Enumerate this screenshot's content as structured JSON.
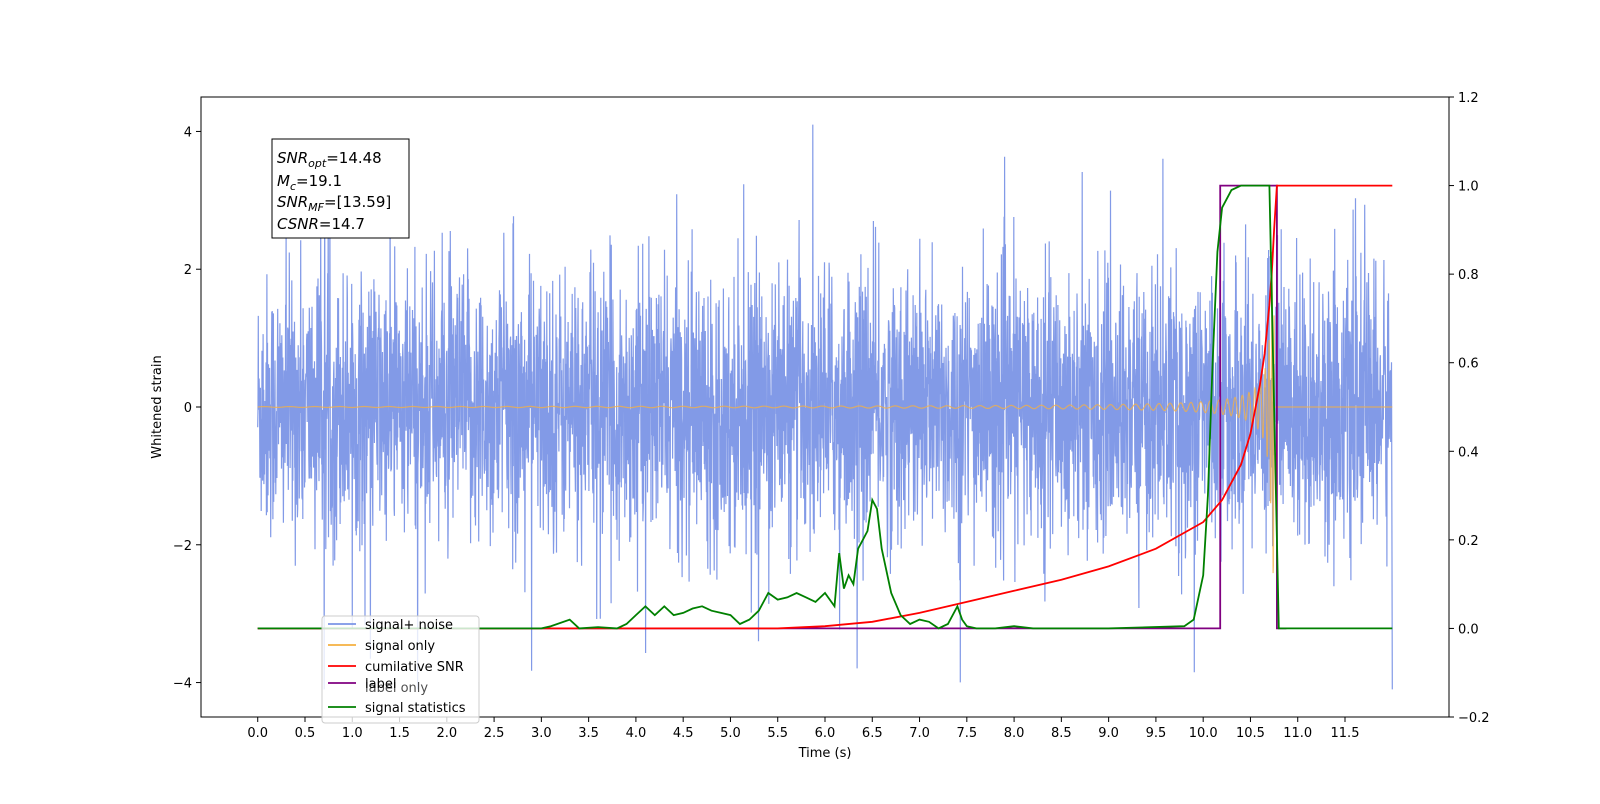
{
  "chart_data": {
    "type": "line",
    "xlabel": "Time (s)",
    "ylabel": "Whitened strain",
    "ylabel_right": "",
    "xlim": [
      -0.6,
      12.6
    ],
    "ylim": [
      -4.5,
      4.5
    ],
    "ylim_right": [
      -0.2,
      1.2
    ],
    "x_ticks": [
      "0.0",
      "0.5",
      "1.0",
      "1.5",
      "2.0",
      "2.5",
      "3.0",
      "3.5",
      "4.0",
      "4.5",
      "5.0",
      "5.5",
      "6.0",
      "6.5",
      "7.0",
      "7.5",
      "8.0",
      "8.5",
      "9.0",
      "9.5",
      "10.0",
      "10.5",
      "11.0",
      "11.5"
    ],
    "y_ticks": [
      -4,
      -2,
      0,
      2,
      4
    ],
    "y_ticks_right": [
      "−0.2",
      "0.0",
      "0.2",
      "0.4",
      "0.6",
      "0.8",
      "1.0",
      "1.2"
    ],
    "y_tick_labels": [
      "−4",
      "−2",
      "0",
      "2",
      "4"
    ],
    "grid": false,
    "legend_placement": "lower-left",
    "annotation": {
      "snr_opt": {
        "name": "SNR",
        "sub": "opt",
        "value": "=14.48"
      },
      "mc": {
        "name": "M",
        "sub": "c",
        "value": "=19.1"
      },
      "snr_mf": {
        "name": "SNR",
        "sub": "MF",
        "value": "=[13.59]"
      },
      "csnr": {
        "name": "CSNR",
        "sub": "",
        "value": "=14.7"
      }
    },
    "series": [
      {
        "name": "signal+ noise",
        "color": "#7b95e6",
        "axis": "left",
        "description_values": {
          "x_start": 0.0,
          "x_end": 12.0,
          "amplitude_typical": 2.2,
          "peak_max": 4.1,
          "peak_min": -4.1
        }
      },
      {
        "name": "signal only",
        "color": "#f5b041",
        "axis": "left",
        "chirp": {
          "x_start": 0.0,
          "x_merger": 10.75,
          "x_end": 12.0,
          "peak_amplitude": 3.5
        }
      },
      {
        "name": "cumilative SNR",
        "color": "#ff0000",
        "axis": "right",
        "x": [
          0.0,
          5.0,
          5.5,
          6.0,
          6.5,
          7.0,
          7.5,
          8.0,
          8.5,
          9.0,
          9.5,
          10.0,
          10.2,
          10.4,
          10.5,
          10.6,
          10.65,
          10.7,
          10.73,
          10.75,
          10.78,
          11.0,
          11.5,
          12.0
        ],
        "y": [
          0.0,
          0.0,
          0.0,
          0.005,
          0.015,
          0.035,
          0.06,
          0.085,
          0.11,
          0.14,
          0.18,
          0.24,
          0.29,
          0.37,
          0.44,
          0.55,
          0.62,
          0.73,
          0.82,
          0.9,
          1.0,
          1.0,
          1.0,
          1.0
        ]
      },
      {
        "name": "label",
        "color": "#800080",
        "axis": "right",
        "x": [
          0.0,
          10.18,
          10.18,
          10.78,
          10.78,
          10.88
        ],
        "y": [
          0.0,
          0.0,
          1.0,
          1.0,
          0.0,
          0.0
        ]
      },
      {
        "name": "label only",
        "color": "#cccccc",
        "axis": "right",
        "legend_only": true
      },
      {
        "name": "signal statistics",
        "color": "#008000",
        "axis": "right",
        "x": [
          0.0,
          3.0,
          3.1,
          3.3,
          3.4,
          3.6,
          3.8,
          3.9,
          4.0,
          4.1,
          4.2,
          4.3,
          4.4,
          4.5,
          4.6,
          4.7,
          4.8,
          4.9,
          5.0,
          5.1,
          5.2,
          5.3,
          5.4,
          5.5,
          5.6,
          5.7,
          5.8,
          5.9,
          6.0,
          6.1,
          6.15,
          6.2,
          6.25,
          6.3,
          6.35,
          6.4,
          6.45,
          6.5,
          6.55,
          6.6,
          6.7,
          6.8,
          6.9,
          7.0,
          7.1,
          7.2,
          7.3,
          7.4,
          7.45,
          7.5,
          7.6,
          7.8,
          8.0,
          8.2,
          9.0,
          9.8,
          9.9,
          10.0,
          10.05,
          10.1,
          10.15,
          10.2,
          10.3,
          10.4,
          10.5,
          10.6,
          10.7,
          10.75,
          10.8,
          10.85,
          12.0
        ],
        "y": [
          0.0,
          0.0,
          0.005,
          0.02,
          0.0,
          0.003,
          0.0,
          0.01,
          0.03,
          0.05,
          0.03,
          0.05,
          0.03,
          0.035,
          0.045,
          0.05,
          0.04,
          0.035,
          0.03,
          0.01,
          0.02,
          0.04,
          0.08,
          0.065,
          0.07,
          0.08,
          0.07,
          0.06,
          0.08,
          0.05,
          0.17,
          0.09,
          0.12,
          0.1,
          0.18,
          0.2,
          0.22,
          0.29,
          0.27,
          0.18,
          0.08,
          0.03,
          0.01,
          0.02,
          0.015,
          0.0,
          0.01,
          0.05,
          0.02,
          0.005,
          0.0,
          0.0,
          0.005,
          0.0,
          0.0,
          0.005,
          0.02,
          0.12,
          0.3,
          0.6,
          0.85,
          0.95,
          0.99,
          1.0,
          1.0,
          1.0,
          1.0,
          0.5,
          0.0,
          0.0,
          0.0
        ]
      }
    ]
  }
}
